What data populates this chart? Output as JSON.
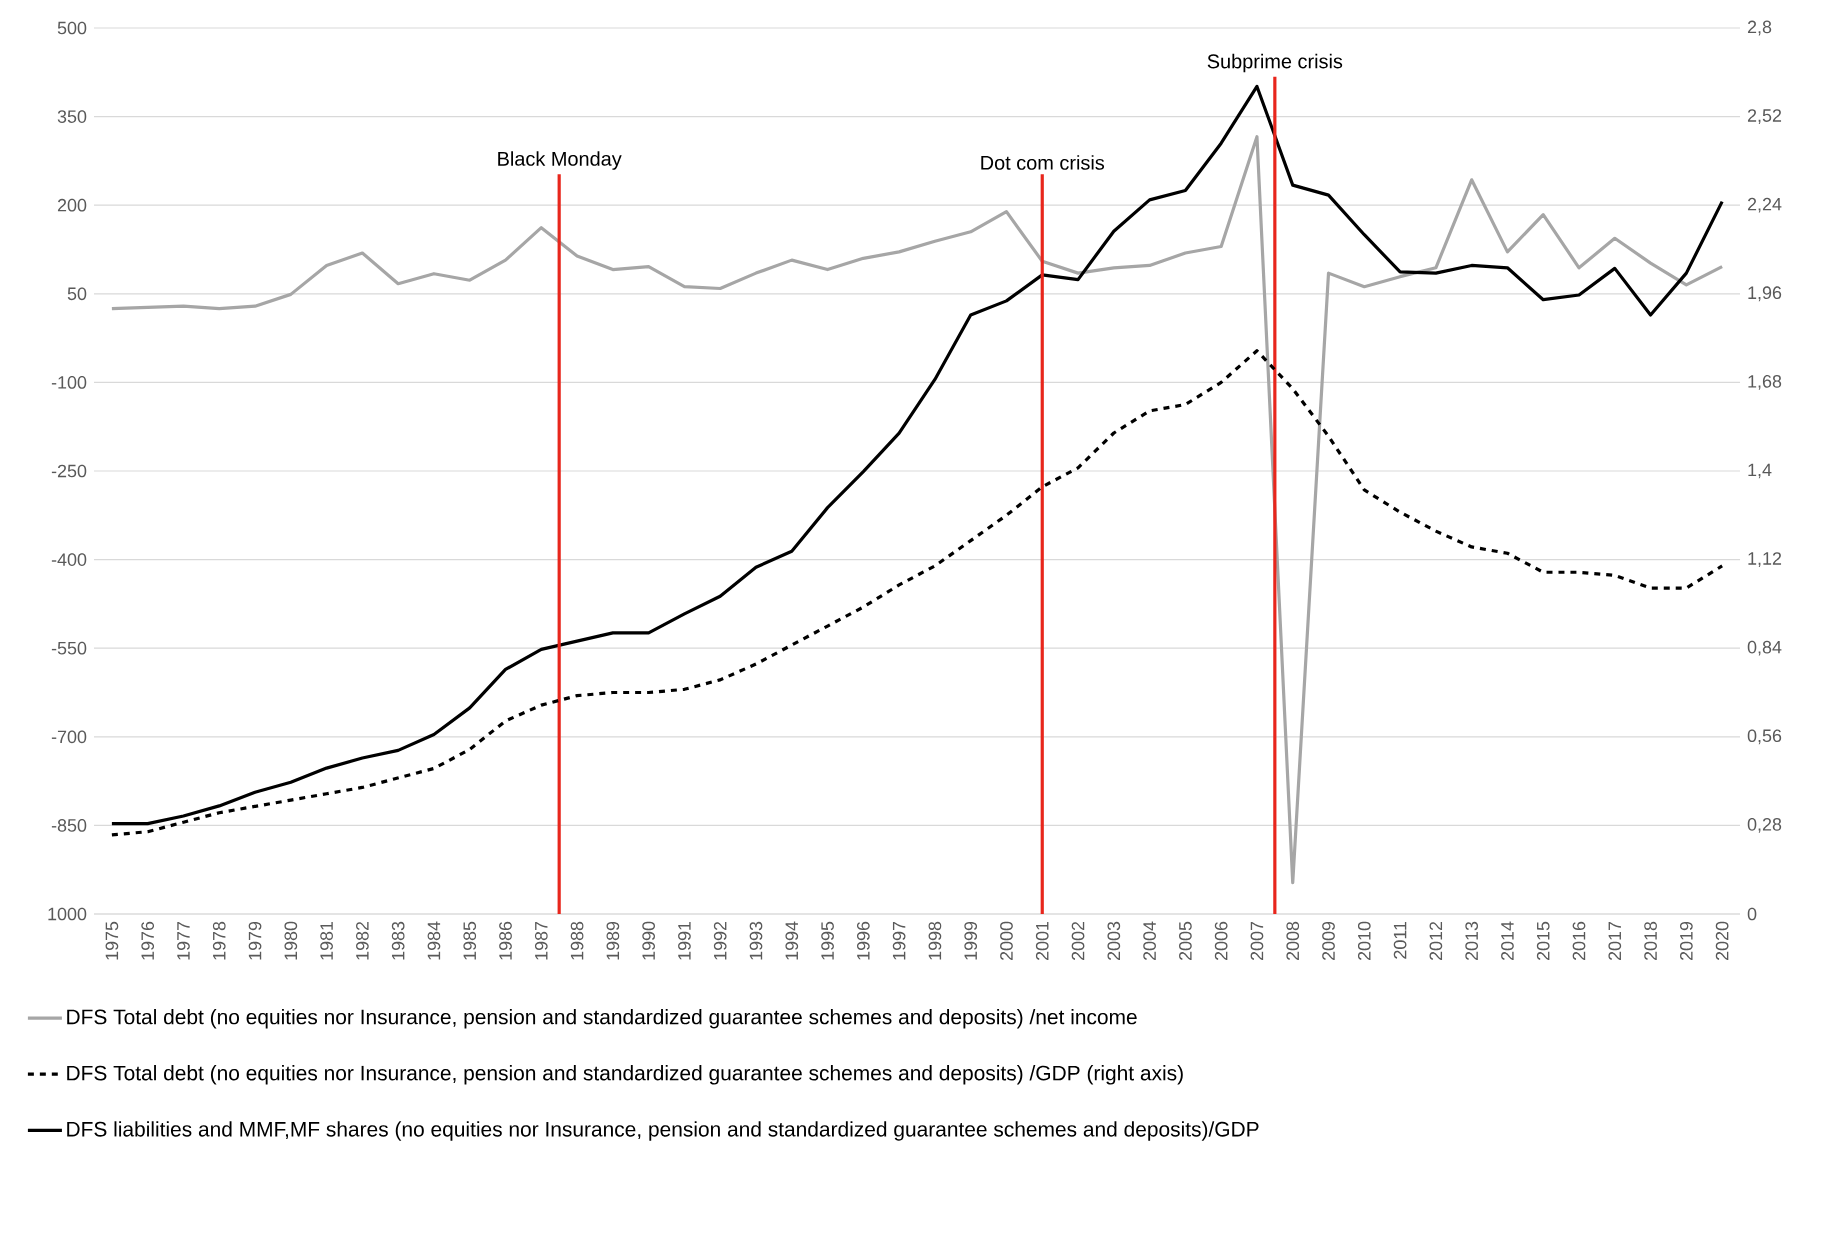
{
  "chart_data": {
    "type": "line",
    "x": [
      1975,
      1976,
      1977,
      1978,
      1979,
      1980,
      1981,
      1982,
      1983,
      1984,
      1985,
      1986,
      1987,
      1988,
      1989,
      1990,
      1991,
      1992,
      1993,
      1994,
      1995,
      1996,
      1997,
      1998,
      1999,
      2000,
      2001,
      2002,
      2003,
      2004,
      2005,
      2006,
      2007,
      2008,
      2009,
      2010,
      2011,
      2012,
      2013,
      2014,
      2015,
      2016,
      2017,
      2018,
      2019,
      2020
    ],
    "series": [
      {
        "name": "DFS Total debt (no equities nor Insurance, pension and standardized guarantee schemes and deposits) /net income",
        "color": "#a6a6a6",
        "line_style": "solid",
        "values": [
          25,
          27,
          29,
          25,
          29,
          49,
          98,
          119,
          67,
          84,
          73,
          107,
          162,
          114,
          91,
          96,
          62,
          59,
          85,
          107,
          91,
          110,
          121,
          139,
          155,
          189,
          105,
          85,
          94,
          98,
          119,
          130,
          316,
          -947,
          85,
          62,
          79,
          94,
          243,
          121,
          184,
          94,
          144,
          102,
          65,
          96
        ]
      },
      {
        "name": "DFS Total debt (no equities nor Insurance, pension and standardized guarantee schemes and deposits) /GDP (right axis)",
        "color": "#000000",
        "line_style": "dashed",
        "axis": "y2",
        "values": [
          0.25,
          0.26,
          0.29,
          0.32,
          0.34,
          0.36,
          0.38,
          0.4,
          0.43,
          0.46,
          0.52,
          0.61,
          0.66,
          0.69,
          0.7,
          0.7,
          0.71,
          0.74,
          0.79,
          0.85,
          0.91,
          0.97,
          1.04,
          1.1,
          1.18,
          1.26,
          1.35,
          1.41,
          1.52,
          1.59,
          1.61,
          1.68,
          1.78,
          1.66,
          1.51,
          1.34,
          1.27,
          1.21,
          1.16,
          1.14,
          1.08,
          1.08,
          1.07,
          1.03,
          1.03,
          1.1
        ]
      },
      {
        "name": "DFS liabilities and MMF,MF shares (no equities nor Insurance, pension and standardized guarantee schemes and deposits)/GDP",
        "color": "#000000",
        "line_style": "solid",
        "values": [
          -847,
          -847,
          -834,
          -817,
          -794,
          -777,
          -753,
          -736,
          -723,
          -696,
          -651,
          -586,
          -552,
          -538,
          -524,
          -524,
          -492,
          -462,
          -413,
          -386,
          -312,
          -251,
          -186,
          -95,
          14,
          38,
          82,
          74,
          156,
          209,
          225,
          305,
          401,
          234,
          217,
          150,
          87,
          85,
          98,
          94,
          40,
          48,
          93,
          14,
          85,
          206
        ]
      }
    ],
    "xlim": [
      1974.5,
      2020.5
    ],
    "xticks": [
      1975,
      1976,
      1977,
      1978,
      1979,
      1980,
      1981,
      1982,
      1983,
      1984,
      1985,
      1986,
      1987,
      1988,
      1989,
      1990,
      1991,
      1992,
      1993,
      1994,
      1995,
      1996,
      1997,
      1998,
      1999,
      2000,
      2001,
      2002,
      2003,
      2004,
      2005,
      2006,
      2007,
      2008,
      2009,
      2010,
      2011,
      2012,
      2013,
      2014,
      2015,
      2016,
      2017,
      2018,
      2019,
      2020
    ],
    "ylim": [
      -1000,
      500
    ],
    "yticks": [
      500,
      350,
      200,
      50,
      -100,
      -250,
      -400,
      -550,
      -700,
      -850,
      {
        "value": -1000,
        "label": "1000"
      }
    ],
    "y2lim": [
      0,
      2.8
    ],
    "y2ticks": [
      {
        "value": 2.8,
        "label": "2,8"
      },
      {
        "value": 2.52,
        "label": "2,52"
      },
      {
        "value": 2.24,
        "label": "2,24"
      },
      {
        "value": 1.96,
        "label": "1,96"
      },
      {
        "value": 1.68,
        "label": "1,68"
      },
      {
        "value": 1.4,
        "label": "1,4"
      },
      {
        "value": 1.12,
        "label": "1,12"
      },
      {
        "value": 0.84,
        "label": "0,84"
      },
      {
        "value": 0.56,
        "label": "0,56"
      },
      {
        "value": 0.28,
        "label": "0,28"
      },
      0
    ],
    "ref_lines": [
      {
        "axis": "x",
        "value": 1987.5,
        "label": "Black Monday",
        "color": "#e8261c"
      },
      {
        "axis": "x",
        "value": 2001,
        "label": "Dot com crisis",
        "color": "#e8261c"
      },
      {
        "axis": "x",
        "value": 2007.5,
        "label": "Subprime crisis",
        "color": "#e8261c"
      }
    ],
    "grid": "y",
    "legend": "bottom",
    "marker": "none"
  }
}
